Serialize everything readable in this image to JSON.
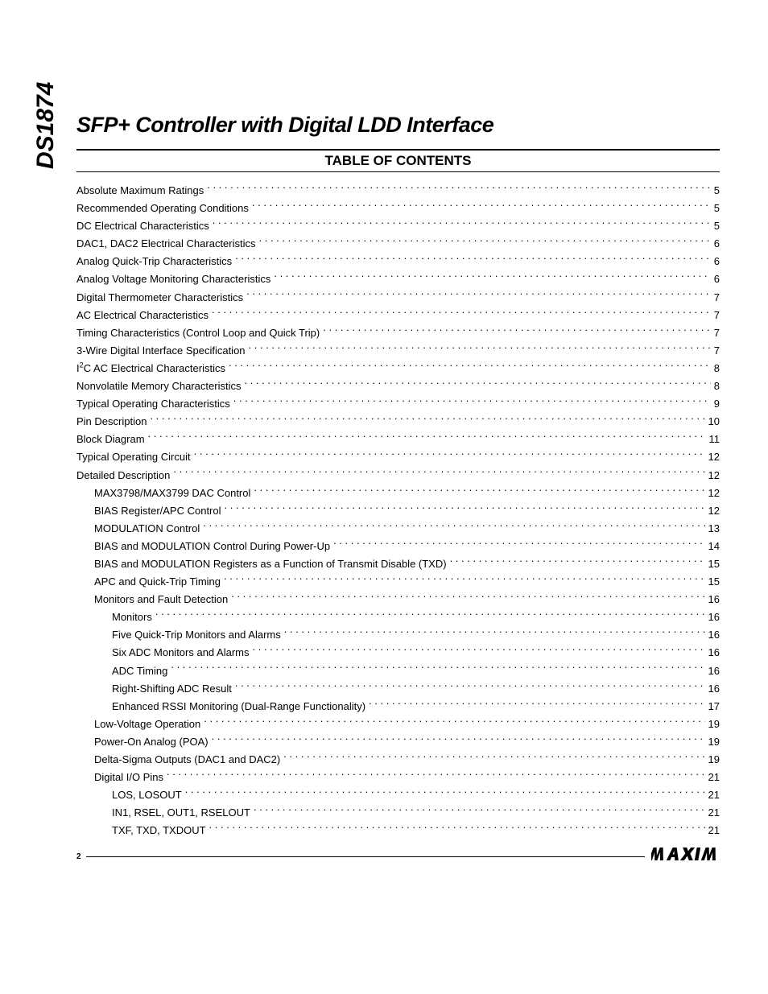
{
  "part_number": "DS1874",
  "title": "SFP+ Controller with Digital LDD Interface",
  "toc_heading": "TABLE OF CONTENTS",
  "page_number": "2",
  "brand": "MAXIM",
  "toc": [
    {
      "label": "Absolute Maximum Ratings",
      "page": "5",
      "indent": 0
    },
    {
      "label": "Recommended Operating Conditions",
      "page": "5",
      "indent": 0
    },
    {
      "label": "DC Electrical Characteristics",
      "page": "5",
      "indent": 0
    },
    {
      "label": "DAC1, DAC2 Electrical Characteristics",
      "page": "6",
      "indent": 0
    },
    {
      "label": "Analog Quick-Trip Characteristics",
      "page": "6",
      "indent": 0
    },
    {
      "label": "Analog Voltage Monitoring Characteristics",
      "page": "6",
      "indent": 0
    },
    {
      "label": "Digital Thermometer Characteristics",
      "page": "7",
      "indent": 0
    },
    {
      "label": "AC Electrical Characteristics",
      "page": "7",
      "indent": 0
    },
    {
      "label": "Timing Characteristics (Control Loop and Quick Trip)",
      "page": "7",
      "indent": 0
    },
    {
      "label": "3-Wire Digital Interface Specification",
      "page": "7",
      "indent": 0
    },
    {
      "label_html": "I<sup>2</sup>C AC Electrical Characteristics",
      "page": "8",
      "indent": 0
    },
    {
      "label": "Nonvolatile Memory Characteristics",
      "page": "8",
      "indent": 0
    },
    {
      "label": "Typical Operating Characteristics",
      "page": "9",
      "indent": 0
    },
    {
      "label": "Pin Description",
      "page": "10",
      "indent": 0
    },
    {
      "label": "Block Diagram",
      "page": "11",
      "indent": 0
    },
    {
      "label": "Typical Operating Circuit",
      "page": "12",
      "indent": 0
    },
    {
      "label": "Detailed Description",
      "page": "12",
      "indent": 0
    },
    {
      "label": "MAX3798/MAX3799 DAC Control",
      "page": "12",
      "indent": 1
    },
    {
      "label": "BIAS Register/APC Control",
      "page": "12",
      "indent": 1
    },
    {
      "label": "MODULATION Control",
      "page": "13",
      "indent": 1
    },
    {
      "label": "BIAS and MODULATION Control During Power-Up",
      "page": "14",
      "indent": 1
    },
    {
      "label": "BIAS and MODULATION Registers as a Function of Transmit Disable (TXD)",
      "page": "15",
      "indent": 1
    },
    {
      "label": "APC and Quick-Trip Timing",
      "page": "15",
      "indent": 1
    },
    {
      "label": "Monitors and Fault Detection",
      "page": "16",
      "indent": 1
    },
    {
      "label": "Monitors",
      "page": "16",
      "indent": 2
    },
    {
      "label": "Five Quick-Trip Monitors and Alarms",
      "page": "16",
      "indent": 2
    },
    {
      "label": "Six ADC Monitors and Alarms",
      "page": "16",
      "indent": 2
    },
    {
      "label": "ADC Timing",
      "page": "16",
      "indent": 2
    },
    {
      "label": "Right-Shifting ADC Result",
      "page": "16",
      "indent": 2
    },
    {
      "label": "Enhanced RSSI Monitoring (Dual-Range Functionality)",
      "page": "17",
      "indent": 2
    },
    {
      "label": "Low-Voltage Operation",
      "page": "19",
      "indent": 1
    },
    {
      "label": "Power-On Analog (POA)",
      "page": "19",
      "indent": 1
    },
    {
      "label": "Delta-Sigma Outputs (DAC1 and DAC2)",
      "page": "19",
      "indent": 1
    },
    {
      "label": "Digital I/O Pins",
      "page": "21",
      "indent": 1
    },
    {
      "label": "LOS, LOSOUT",
      "page": "21",
      "indent": 2
    },
    {
      "label": "IN1, RSEL, OUT1, RSELOUT",
      "page": "21",
      "indent": 2
    },
    {
      "label": "TXF, TXD, TXDOUT",
      "page": "21",
      "indent": 2
    }
  ]
}
